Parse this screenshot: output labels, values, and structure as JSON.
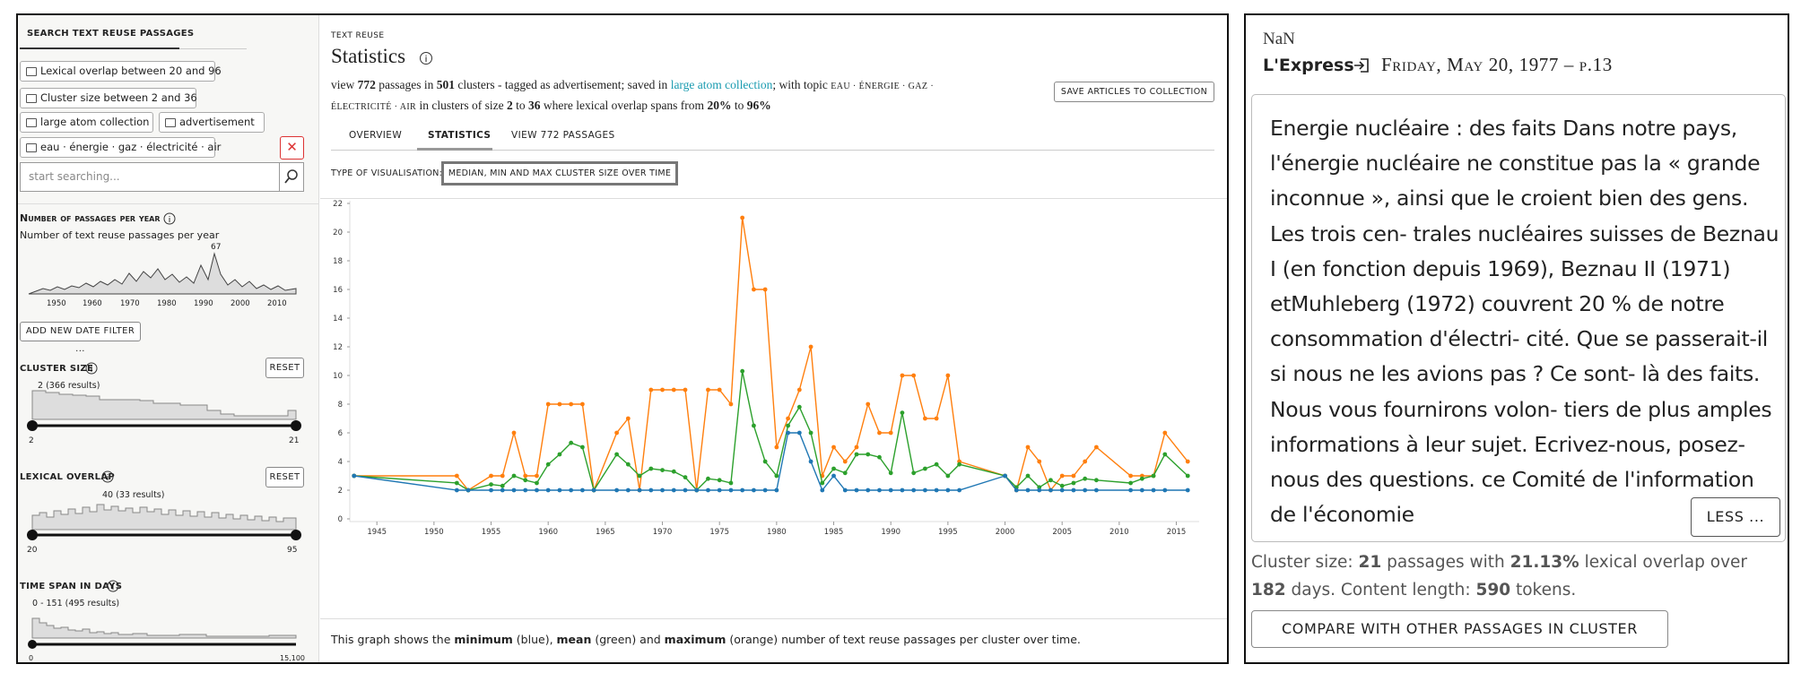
{
  "sidebar": {
    "title": "SEARCH TEXT REUSE PASSAGES",
    "filters": [
      "Lexical overlap between 20 and 96",
      "Cluster size between 2 and 36",
      "large atom collection",
      "advertisement",
      "eau · énergie · gaz · électricité · air"
    ],
    "search_placeholder": "start searching...",
    "passages_per_year": {
      "title": "Number of passages per year",
      "subtitle": "Number of text reuse passages per year",
      "peak_label": "67",
      "axis_labels": [
        "1950",
        "1960",
        "1970",
        "1980",
        "1990",
        "2000",
        "2010"
      ]
    },
    "add_date_filter": "ADD NEW DATE FILTER ...",
    "cluster_size": {
      "title": "CLUSTER SIZE",
      "reset": "RESET",
      "peak_label": "2 (366 results)",
      "min": "2",
      "max": "21"
    },
    "lexical_overlap": {
      "title": "LEXICAL OVERLAP",
      "reset": "RESET",
      "peak_label": "40 (33 results)",
      "min": "20",
      "max": "95"
    },
    "time_span": {
      "title": "TIME SPAN IN DAYS",
      "peak_label": "0 - 151 (495 results)",
      "min": "0",
      "max": "15,100"
    }
  },
  "main": {
    "eyebrow": "TEXT REUSE",
    "title": "Statistics",
    "summary": [
      {
        "text": "view "
      },
      {
        "text": "772",
        "bold": true
      },
      {
        "text": " passages in "
      },
      {
        "text": "501",
        "bold": true
      },
      {
        "text": " clusters - tagged as advertisement; saved in "
      },
      {
        "text": "large atom collection",
        "link": true
      },
      {
        "text": "; with topic "
      },
      {
        "text": "EAU · ÉNERGIE · GAZ · ÉLECTRICITÉ · AIR",
        "small": true
      },
      {
        "text": " in clusters of size "
      },
      {
        "text": "2",
        "bold": true
      },
      {
        "text": " to "
      },
      {
        "text": "36",
        "bold": true
      },
      {
        "text": " where lexical overlap spans from "
      },
      {
        "text": "20%",
        "bold": true
      },
      {
        "text": " to "
      },
      {
        "text": "96%",
        "bold": true
      }
    ],
    "save_button": "SAVE ARTICLES TO COLLECTION",
    "tabs": [
      "OVERVIEW",
      "STATISTICS",
      "VIEW 772 PASSAGES"
    ],
    "visualisation_label": "TYPE OF VISUALISATION:",
    "visualisation_value": "MEDIAN, MIN AND MAX CLUSTER SIZE OVER TIME",
    "chart": {
      "type": "line",
      "x": [
        1943,
        1952,
        1953,
        1955,
        1956,
        1957,
        1958,
        1959,
        1960,
        1961,
        1962,
        1963,
        1964,
        1966,
        1967,
        1968,
        1969,
        1970,
        1971,
        1972,
        1973,
        1974,
        1975,
        1976,
        1977,
        1978,
        1979,
        1980,
        1981,
        1982,
        1983,
        1984,
        1985,
        1986,
        1987,
        1988,
        1989,
        1990,
        1991,
        1992,
        1993,
        1994,
        1995,
        1996,
        2000,
        2001,
        2002,
        2003,
        2004,
        2005,
        2006,
        2007,
        2008,
        2011,
        2012,
        2013,
        2014,
        2016
      ],
      "series": [
        {
          "color": "#ff7f0e",
          "values": [
            3,
            3,
            2,
            3,
            3,
            6,
            3,
            3,
            8,
            8,
            8,
            8,
            2,
            6,
            7,
            2,
            9,
            9,
            9,
            9,
            2,
            9,
            9,
            8,
            21,
            16,
            16,
            5,
            7,
            9,
            12,
            3,
            5,
            4,
            5,
            8,
            6,
            6,
            10,
            10,
            7,
            7,
            10,
            4,
            3,
            2,
            5,
            4,
            2,
            3,
            3,
            4,
            5,
            3,
            3,
            3,
            6,
            4
          ]
        },
        {
          "color": "#2ca02c",
          "values": [
            3,
            2.5,
            2,
            2.4,
            2.3,
            3,
            2.7,
            2.5,
            3.8,
            4.5,
            5.3,
            5,
            2,
            4.5,
            3.8,
            3,
            3.5,
            3.4,
            3.3,
            2.9,
            2,
            2.8,
            2.7,
            2.5,
            10.3,
            6.5,
            4,
            3,
            6.5,
            7.8,
            6,
            2.5,
            3.5,
            3.2,
            4.5,
            4.5,
            4.3,
            3.2,
            7.4,
            3.2,
            3.5,
            3.8,
            3,
            3.8,
            3,
            2.2,
            3,
            2.2,
            2.7,
            2.3,
            2.5,
            2.8,
            2.7,
            2.5,
            2.8,
            3,
            4.5,
            3
          ]
        },
        {
          "color": "#1f77b4",
          "values": [
            3,
            2,
            2,
            2,
            2,
            2,
            2,
            2,
            2,
            2,
            2,
            2,
            2,
            2,
            2,
            2,
            2,
            2,
            2,
            2,
            2,
            2,
            2,
            2,
            2,
            2,
            2,
            2,
            6,
            6,
            4,
            2,
            3,
            2,
            2,
            2,
            2,
            2,
            2,
            2,
            2,
            2,
            2,
            2,
            3,
            2,
            2,
            2,
            2,
            2,
            2,
            2,
            2,
            2,
            2,
            2,
            2,
            2
          ]
        }
      ],
      "xlim": [
        1942,
        2017
      ],
      "xticks": [
        1945,
        1950,
        1955,
        1960,
        1965,
        1970,
        1975,
        1980,
        1985,
        1990,
        1995,
        2000,
        2005,
        2010,
        2015
      ],
      "ylim": [
        0,
        22
      ],
      "yticks": [
        0,
        2,
        4,
        6,
        8,
        10,
        12,
        14,
        16,
        18,
        20,
        22
      ],
      "grid": false
    },
    "caption": [
      {
        "text": "This graph shows the "
      },
      {
        "text": "minimum",
        "bold": true
      },
      {
        "text": " (blue), "
      },
      {
        "text": "mean",
        "bold": true
      },
      {
        "text": " (green) and "
      },
      {
        "text": "maximum",
        "bold": true
      },
      {
        "text": " (orange) number of text reuse passages per cluster over time."
      }
    ]
  },
  "article": {
    "header": "NaN",
    "newspaper": "L'Express",
    "date": "Friday, May 20, 1977 – p.13",
    "text": "Energie nucléaire : des faits Dans notre pays, l'énergie nucléaire ne constitue pas la « grande inconnue », ainsi que le croient bien des gens. Les trois cen- trales nucléaires suisses de Beznau I (en fonction depuis 1969), Beznau II (1971) etMuhleberg (1972) couvrent 20 % de notre consommation d'électri- cité. Que se passerait-il si nous ne les avions pas ? Ce sont- là des faits. Nous vous fournirons volon- tiers de plus amples informations à leur sujet. Ecrivez-nous, posez-nous des questions. ce Comité de l'information de l'économie",
    "less_button": "LESS ...",
    "meta": [
      {
        "text": "Cluster size: "
      },
      {
        "text": "21",
        "bold": true
      },
      {
        "text": " passages with "
      },
      {
        "text": "21.13%",
        "bold": true
      },
      {
        "text": " lexical overlap over "
      },
      {
        "text": "182",
        "bold": true
      },
      {
        "text": " days. Content length: "
      },
      {
        "text": "590",
        "bold": true
      },
      {
        "text": " tokens."
      }
    ],
    "compare_button": "COMPARE WITH OTHER PASSAGES IN CLUSTER"
  }
}
